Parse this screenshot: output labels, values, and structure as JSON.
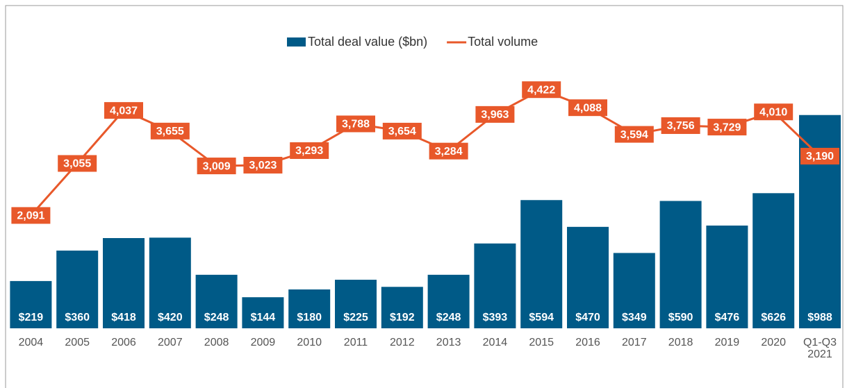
{
  "chart_data": {
    "type": "bar-line",
    "categories": [
      "2004",
      "2005",
      "2006",
      "2007",
      "2008",
      "2009",
      "2010",
      "2011",
      "2012",
      "2013",
      "2014",
      "2015",
      "2016",
      "2017",
      "2018",
      "2019",
      "2020",
      "Q1-Q3\n2021"
    ],
    "series": [
      {
        "name": "Total deal value ($bn)",
        "type": "bar",
        "color": "#005a87",
        "values": [
          219,
          360,
          418,
          420,
          248,
          144,
          180,
          225,
          192,
          248,
          393,
          594,
          470,
          349,
          590,
          476,
          626,
          988
        ],
        "value_labels": [
          "$219",
          "$360",
          "$418",
          "$420",
          "$248",
          "$144",
          "$180",
          "$225",
          "$192",
          "$248",
          "$393",
          "$594",
          "$470",
          "$349",
          "$590",
          "$476",
          "$626",
          "$988"
        ]
      },
      {
        "name": "Total volume",
        "type": "line",
        "axis": "y2",
        "color": "#e8582a",
        "values": [
          2091,
          3055,
          4037,
          3655,
          3009,
          3023,
          3293,
          3788,
          3654,
          3284,
          3963,
          4422,
          4088,
          3594,
          3756,
          3729,
          4010,
          3190
        ],
        "value_labels": [
          "2,091",
          "3,055",
          "4,037",
          "3,655",
          "3,009",
          "3,023",
          "3,293",
          "3,788",
          "3,654",
          "3,284",
          "3,963",
          "4,422",
          "4,088",
          "3,594",
          "3,756",
          "3,729",
          "4,010",
          "3,190"
        ]
      }
    ],
    "ylim": [
      0,
      1000
    ],
    "y2lim": [
      0,
      4000
    ],
    "legend": "top"
  }
}
